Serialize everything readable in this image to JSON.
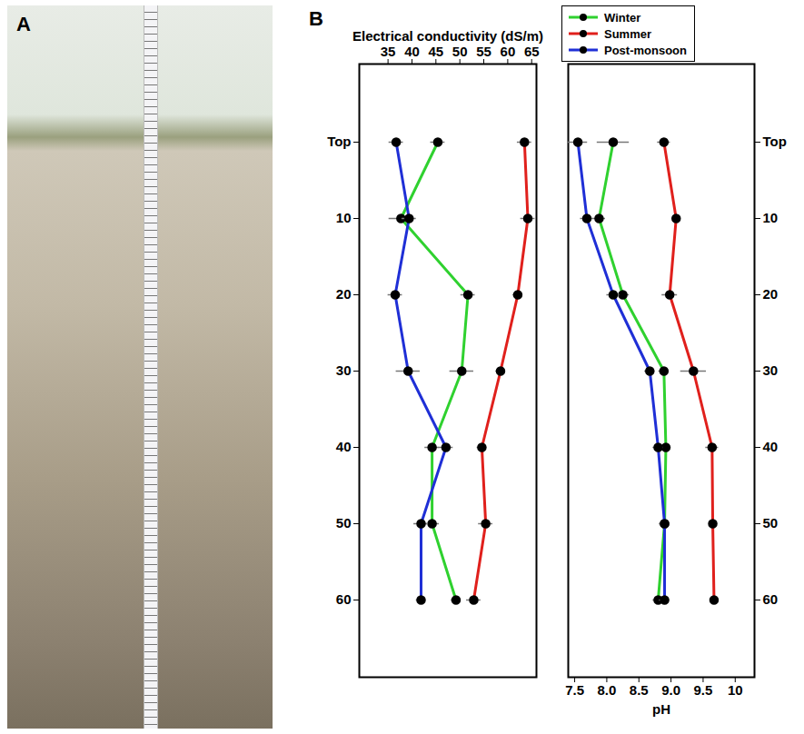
{
  "panel_labels": [
    "A",
    "B"
  ],
  "chart_data": [
    {
      "type": "line",
      "x_label": "Electrical conductivity (dS/m)",
      "xlim": [
        29,
        66
      ],
      "xticks": [
        35,
        40,
        45,
        50,
        55,
        60,
        65
      ],
      "categories": [
        "Top",
        "10",
        "20",
        "30",
        "40",
        "50",
        "60"
      ],
      "marker": "circle",
      "legend": "top-right",
      "series": [
        {
          "name": "Winter",
          "color": "#2fd12f",
          "values": [
            45.4,
            37.7,
            51.7,
            50.4,
            44.2,
            44.2,
            49.2
          ],
          "errors": [
            1.5,
            2.5,
            1.5,
            2.5,
            1.5,
            1.5,
            1.0
          ]
        },
        {
          "name": "Summer",
          "color": "#e0201c",
          "values": [
            63.5,
            64.2,
            62.1,
            58.5,
            54.6,
            55.4,
            52.9
          ],
          "errors": [
            1.5,
            1.5,
            1.0,
            1.0,
            1.0,
            1.5,
            1.5
          ]
        },
        {
          "name": "Post-monsoon",
          "color": "#1f2fd6",
          "values": [
            36.7,
            39.4,
            36.5,
            39.2,
            47.1,
            41.9,
            41.9
          ],
          "errors": [
            1.5,
            1.5,
            1.5,
            2.5,
            1.5,
            1.5,
            1.0
          ]
        }
      ]
    },
    {
      "type": "line",
      "x_label": "pH",
      "xlim": [
        7.4,
        10.3
      ],
      "xticks": [
        7.5,
        {
          "value": 8,
          "label": "8.0"
        },
        8.5,
        {
          "value": 9,
          "label": "9.0"
        },
        9.5,
        10
      ],
      "categories": [
        "Top",
        "10",
        "20",
        "30",
        "40",
        "50",
        "60"
      ],
      "marker": "circle",
      "series": [
        {
          "name": "Winter",
          "color": "#2fd12f",
          "values": [
            8.1,
            7.88,
            8.25,
            8.89,
            8.92,
            8.9,
            8.8
          ],
          "errors": [
            0.25,
            0.1,
            0.1,
            0.08,
            0.08,
            0.08,
            0.08
          ]
        },
        {
          "name": "Summer",
          "color": "#e0201c",
          "values": [
            8.89,
            9.08,
            8.98,
            9.35,
            9.64,
            9.65,
            9.67
          ],
          "errors": [
            0.1,
            0.05,
            0.12,
            0.2,
            0.1,
            0.05,
            0.05
          ]
        },
        {
          "name": "Post-monsoon",
          "color": "#1f2fd6",
          "values": [
            7.55,
            7.69,
            8.1,
            8.67,
            8.8,
            8.9,
            8.9
          ],
          "errors": [
            0.15,
            0.1,
            0.1,
            0.08,
            0.08,
            0.08,
            0.08
          ]
        }
      ]
    }
  ]
}
